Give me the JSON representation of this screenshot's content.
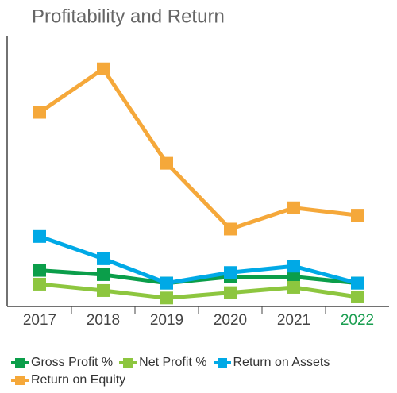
{
  "chart_data": {
    "type": "line",
    "title": "Profitability and Return",
    "categories": [
      "2017",
      "2018",
      "2019",
      "2020",
      "2021",
      "2022"
    ],
    "series": [
      {
        "name": "Gross Profit %",
        "color": "#0b9e4a",
        "values": [
          3.4,
          3.0,
          2.2,
          2.8,
          2.8,
          2.2
        ]
      },
      {
        "name": "Net Profit %",
        "color": "#8dc63f",
        "values": [
          2.1,
          1.5,
          0.8,
          1.3,
          1.8,
          0.9
        ]
      },
      {
        "name": "Return on Assets",
        "color": "#00a9e6",
        "values": [
          6.6,
          4.5,
          2.2,
          3.2,
          3.8,
          2.2
        ]
      },
      {
        "name": "Return on Equity",
        "color": "#f5a83a",
        "values": [
          18.3,
          22.4,
          13.5,
          7.3,
          9.3,
          8.6
        ]
      }
    ],
    "ylim": [
      0,
      25
    ]
  }
}
